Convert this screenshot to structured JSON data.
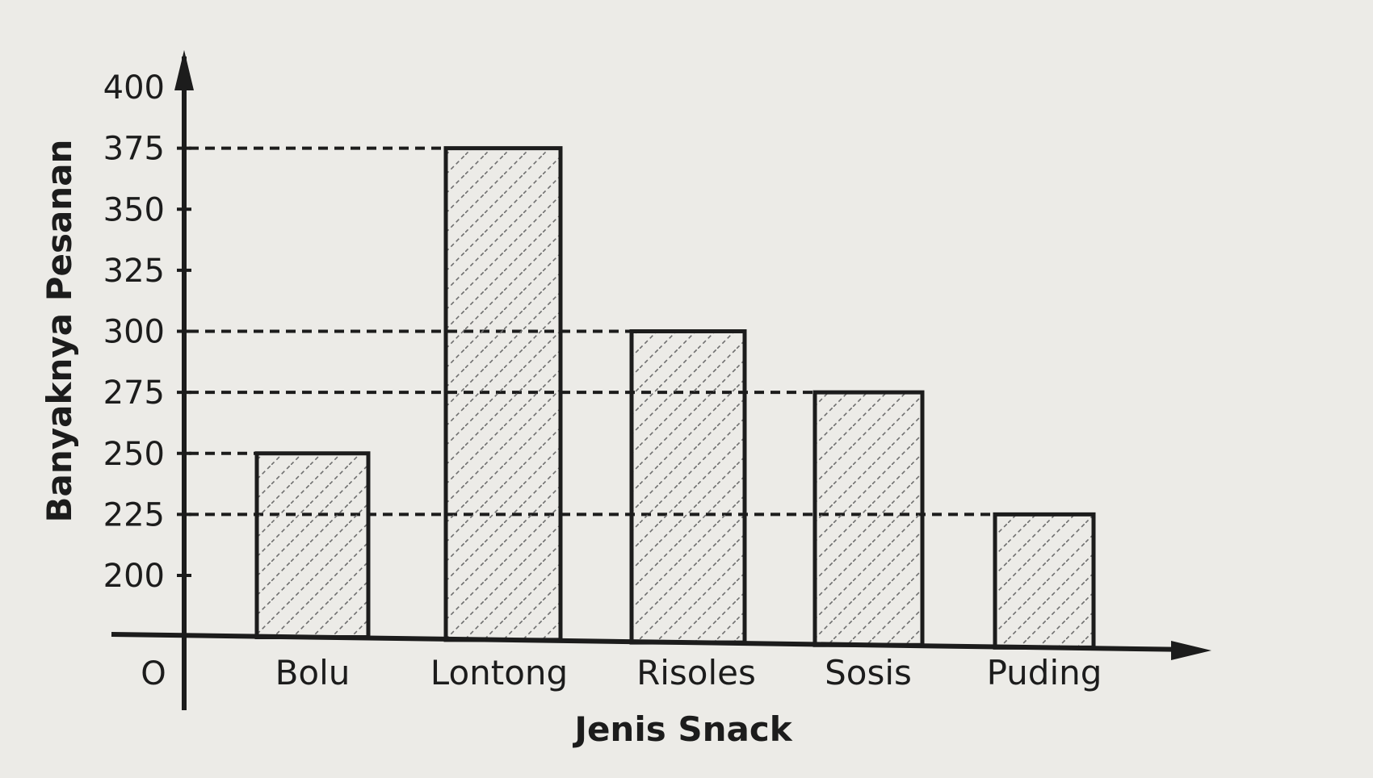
{
  "chart_data": {
    "type": "bar",
    "categories": [
      "Bolu",
      "Lontong",
      "Risoles",
      "Sosis",
      "Puding"
    ],
    "values": [
      250,
      375,
      300,
      275,
      225
    ],
    "xlabel": "Jenis Snack",
    "ylabel": "Banyaknya Pesanan",
    "origin_label": "O",
    "y_axis_start": 200,
    "y_axis_end": 400,
    "y_axis_step": 25,
    "yticks": [
      200,
      225,
      250,
      275,
      300,
      325,
      350,
      375,
      400
    ],
    "bar_pattern": "diagonal-hatch",
    "reference_lines": [
      225,
      250,
      275,
      300,
      375
    ],
    "grid": false,
    "legend": "none"
  }
}
